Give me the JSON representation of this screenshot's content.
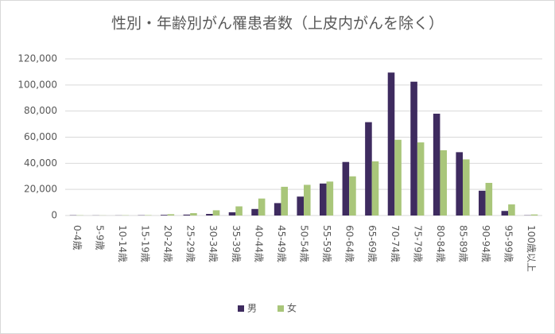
{
  "chart_data": {
    "type": "bar",
    "title": "性別・年齢別がん罹患者数（上皮内がんを除く）",
    "categories": [
      "0-4歳",
      "5-9歳",
      "10-14歳",
      "15-19歳",
      "20-24歳",
      "25-29歳",
      "30-34歳",
      "35-39歳",
      "40-44歳",
      "45-49歳",
      "50-54歳",
      "55-59歳",
      "60-64歳",
      "65-69歳",
      "70-74歳",
      "75-79歳",
      "80-84歳",
      "85-89歳",
      "90-94歳",
      "95-99歳",
      "100歳以上"
    ],
    "series": [
      {
        "name": "男",
        "color": "#3e2b5f",
        "values": [
          200,
          100,
          100,
          200,
          500,
          700,
          1200,
          2500,
          5000,
          9500,
          14500,
          24500,
          41000,
          71500,
          109500,
          102500,
          78000,
          48500,
          19000,
          3500,
          200
        ]
      },
      {
        "name": "女",
        "color": "#a9c67a",
        "values": [
          200,
          100,
          200,
          300,
          1000,
          1800,
          4000,
          7000,
          13000,
          22000,
          23500,
          26000,
          30000,
          41500,
          58000,
          56000,
          50000,
          43000,
          25000,
          8500,
          800
        ]
      }
    ],
    "ylim": [
      0,
      120000
    ],
    "yticks": [
      0,
      {
        "value": 20000,
        "label": "20,000"
      },
      {
        "value": 40000,
        "label": "40,000"
      },
      {
        "value": 60000,
        "label": "60,000"
      },
      {
        "value": 80000,
        "label": "80,000"
      },
      {
        "value": 100000,
        "label": "100,000"
      },
      {
        "value": 120000,
        "label": "120,000"
      }
    ],
    "grid": true,
    "legend": "bottom"
  }
}
